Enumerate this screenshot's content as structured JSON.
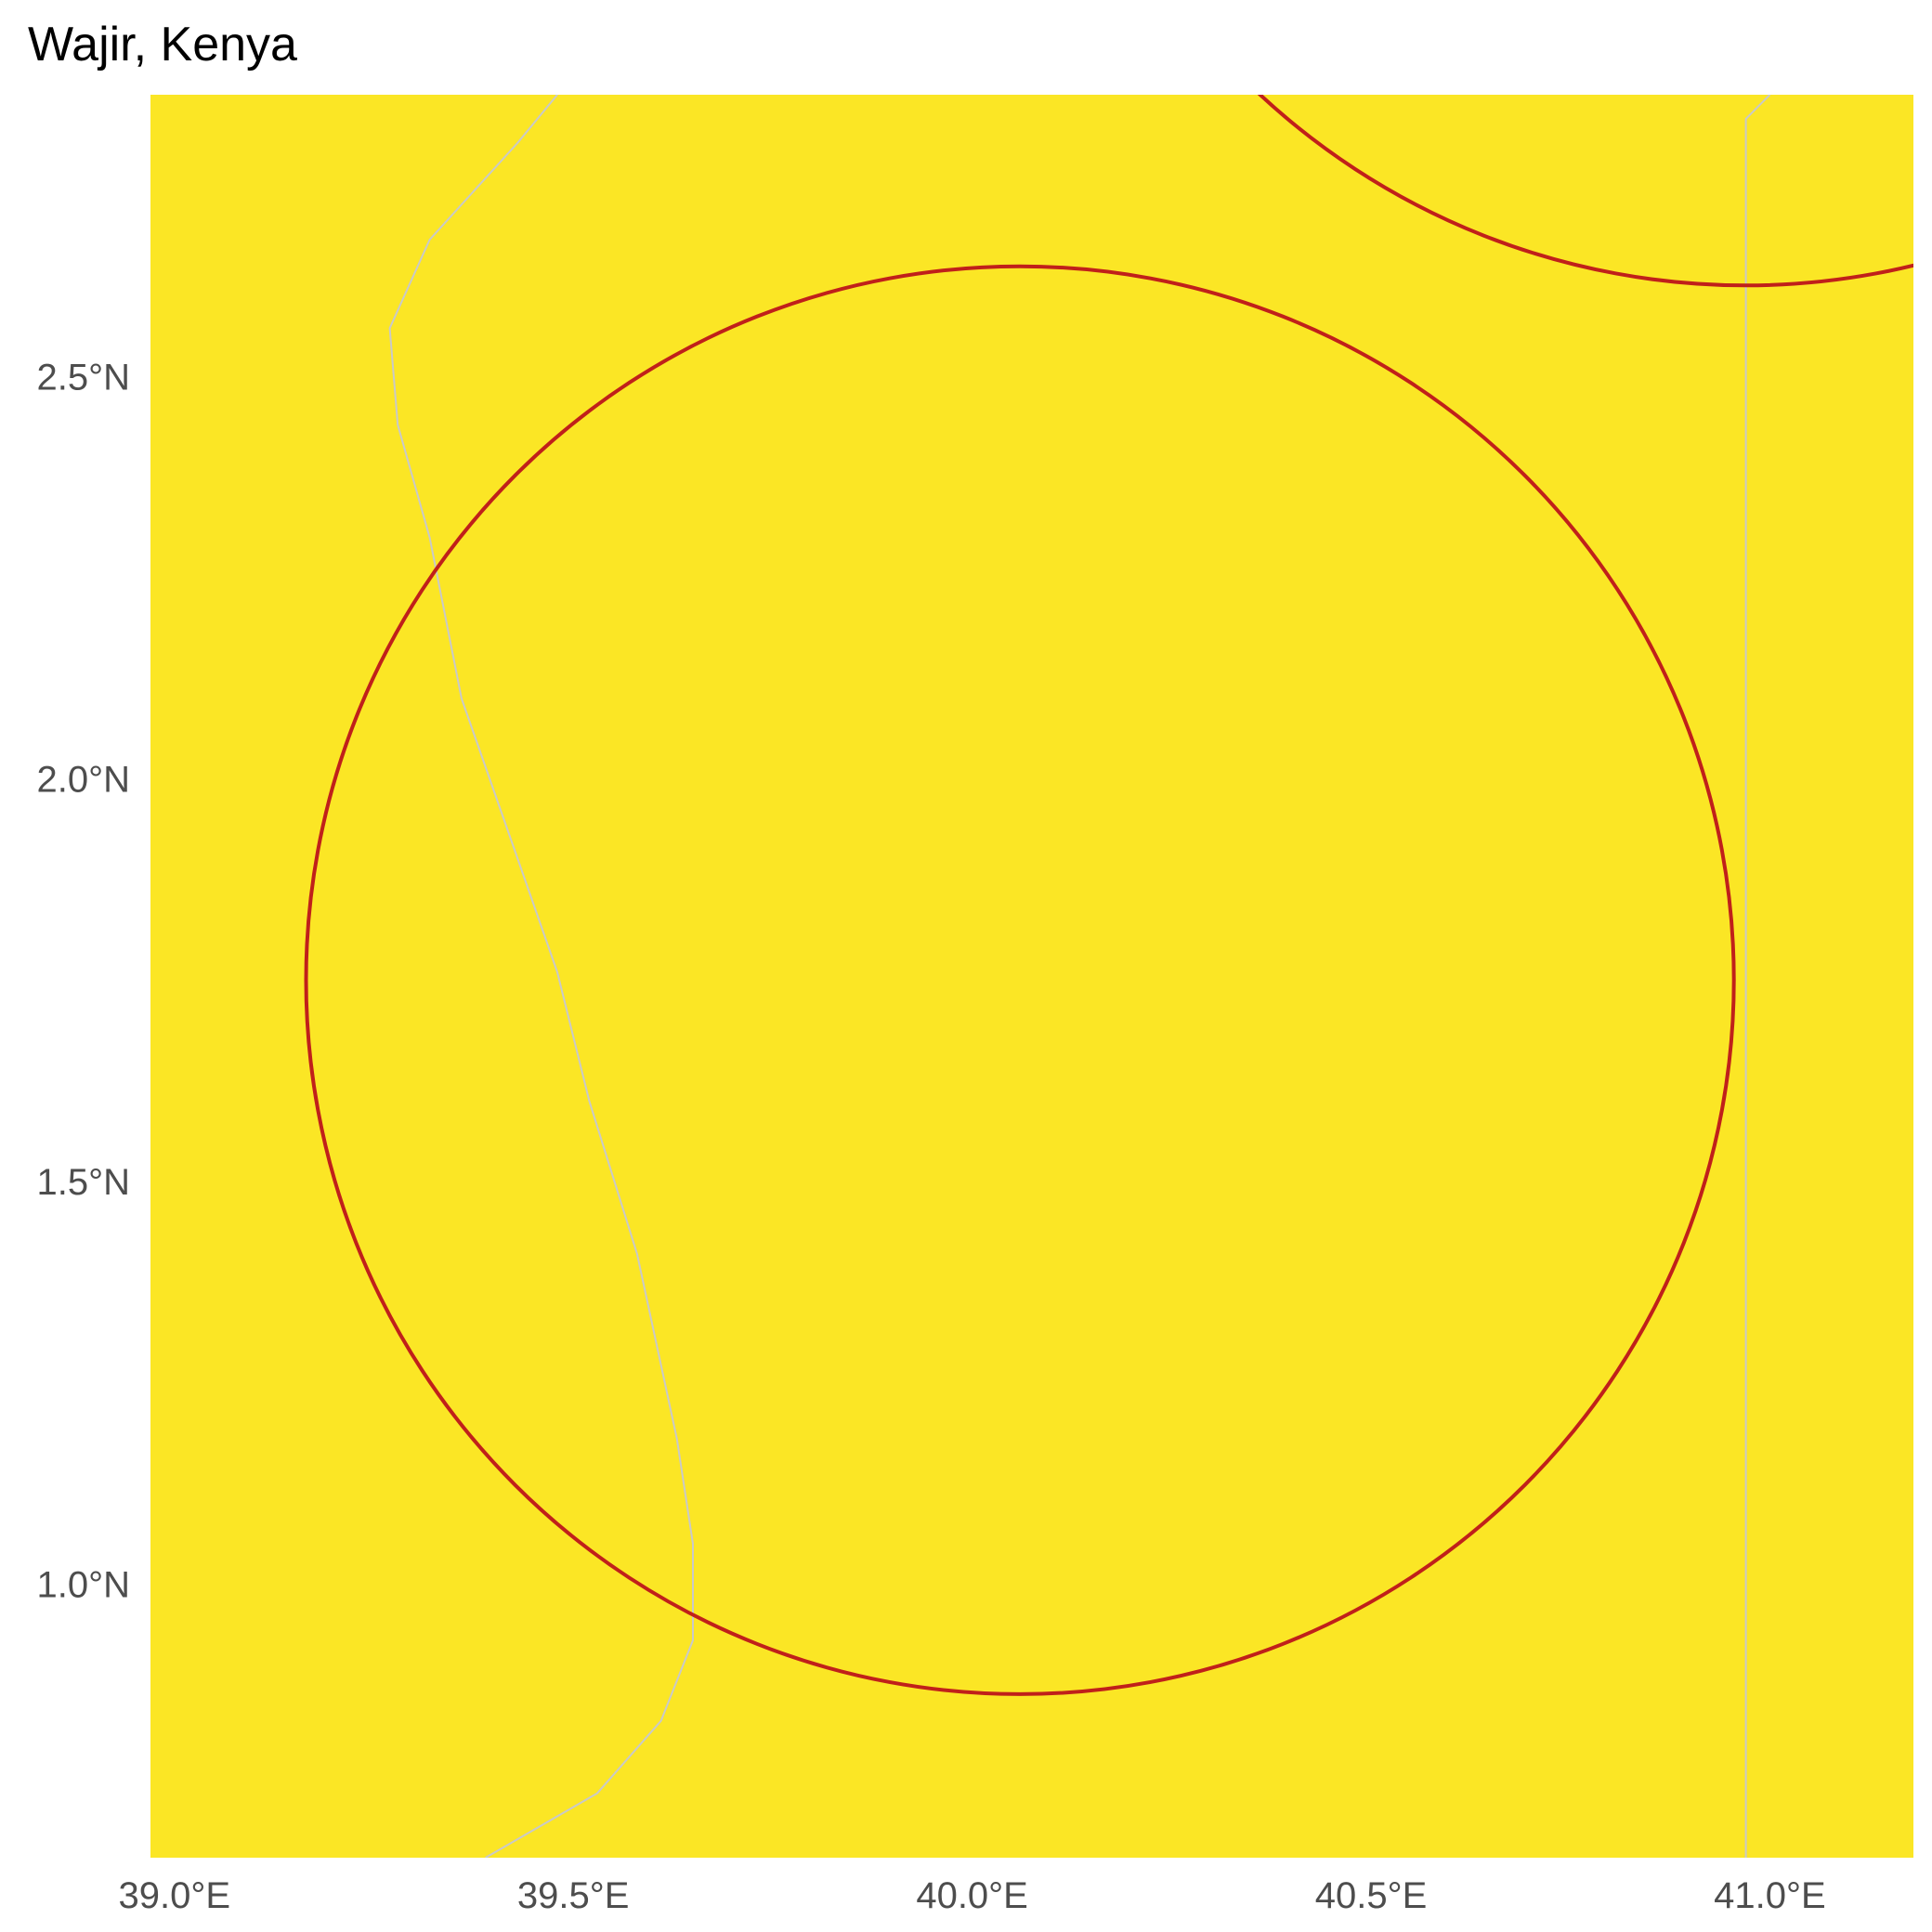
{
  "title": "Wajir, Kenya",
  "map": {
    "extent": {
      "lon": [
        38.97,
        41.18
      ],
      "lat": [
        0.66,
        2.85
      ]
    },
    "x_ticks": [
      {
        "value": 39.0,
        "label": "39.0°E"
      },
      {
        "value": 39.5,
        "label": "39.5°E"
      },
      {
        "value": 40.0,
        "label": "40.0°E"
      },
      {
        "value": 40.5,
        "label": "40.5°E"
      },
      {
        "value": 41.0,
        "label": "41.0°E"
      }
    ],
    "y_ticks": [
      {
        "value": 2.5,
        "label": "2.5°N"
      },
      {
        "value": 2.0,
        "label": "2.0°N"
      },
      {
        "value": 1.5,
        "label": "1.5°N"
      },
      {
        "value": 1.0,
        "label": "1.0°N"
      }
    ],
    "fill_color": "#fbe625",
    "circle_color": "#c0201a",
    "boundary_color": "#c9c9c9",
    "circles": [
      {
        "name": "wajir-buffer",
        "center": [
          40.06,
          1.75
        ],
        "radius_deg": 0.895
      },
      {
        "name": "neighbor-buffer",
        "center": [
          40.97,
          3.5
        ],
        "radius_deg": 0.895
      }
    ],
    "boundaries": [
      {
        "name": "admin-boundary-west",
        "points": [
          [
            39.48,
            2.85
          ],
          [
            39.43,
            2.79
          ],
          [
            39.32,
            2.67
          ],
          [
            39.27,
            2.56
          ],
          [
            39.28,
            2.44
          ],
          [
            39.32,
            2.3
          ],
          [
            39.36,
            2.1
          ],
          [
            39.42,
            1.93
          ],
          [
            39.48,
            1.76
          ],
          [
            39.52,
            1.6
          ],
          [
            39.58,
            1.41
          ],
          [
            39.63,
            1.18
          ],
          [
            39.65,
            1.05
          ],
          [
            39.65,
            0.93
          ],
          [
            39.61,
            0.83
          ],
          [
            39.53,
            0.74
          ],
          [
            39.39,
            0.66
          ]
        ]
      },
      {
        "name": "admin-boundary-east",
        "points": [
          [
            41.0,
            2.85
          ],
          [
            40.99,
            2.84
          ],
          [
            40.97,
            2.82
          ],
          [
            40.97,
            2.6
          ],
          [
            40.97,
            2.2
          ],
          [
            40.97,
            1.8
          ],
          [
            40.97,
            1.4
          ],
          [
            40.97,
            1.0
          ],
          [
            40.97,
            0.66
          ]
        ]
      }
    ]
  }
}
